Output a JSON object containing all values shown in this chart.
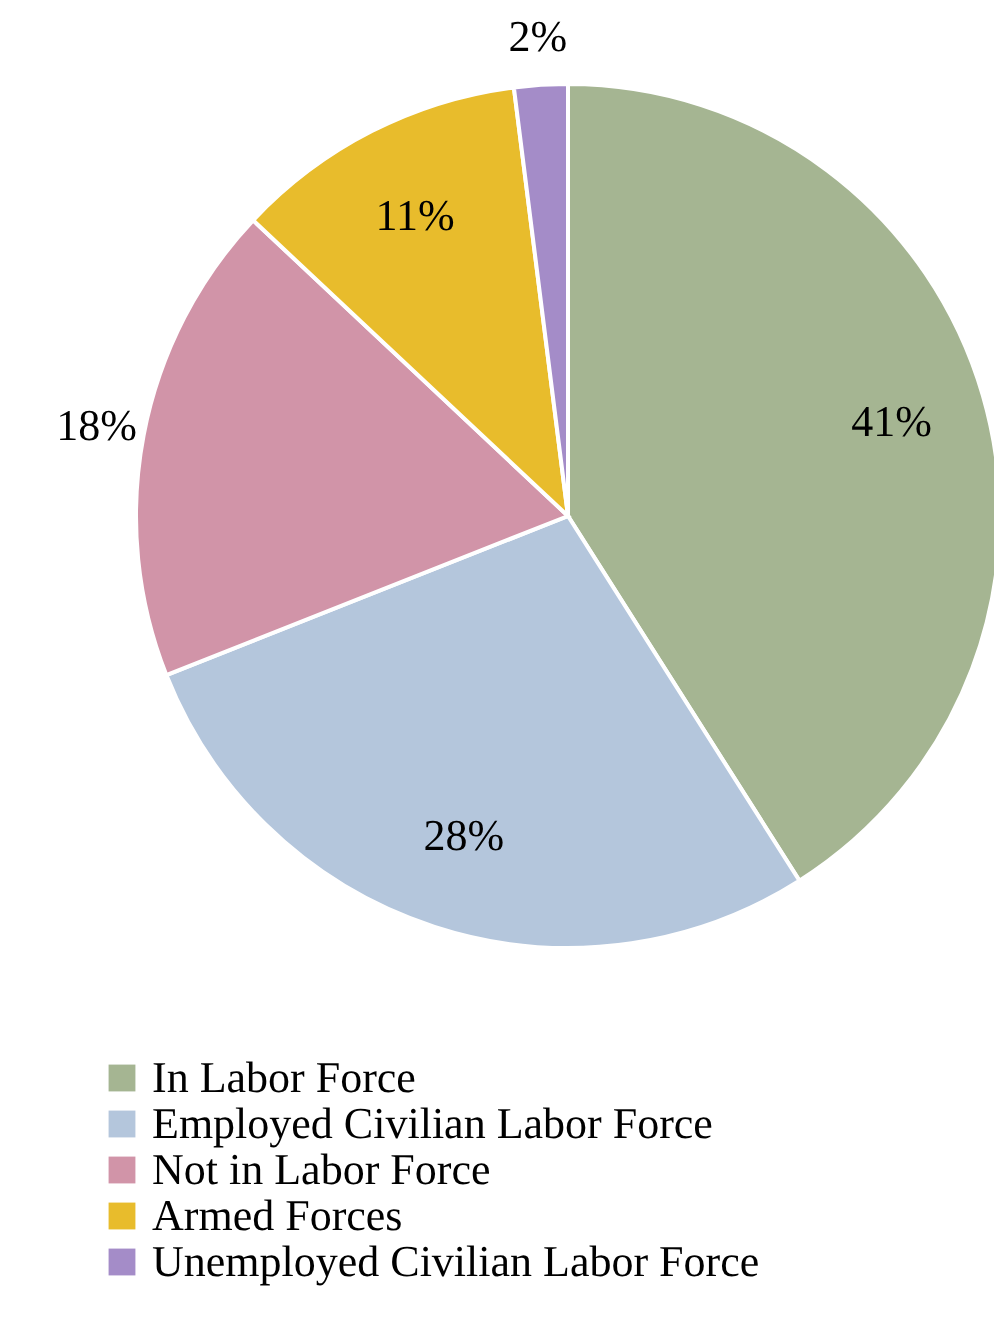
{
  "chart_data": {
    "type": "pie",
    "categories": [
      "In Labor Force",
      "Employed Civilian Labor Force",
      "Not in Labor Force",
      "Armed Forces",
      "Unemployed Civilian Labor Force"
    ],
    "values": [
      41,
      28,
      18,
      11,
      2
    ],
    "colors": [
      "#a5b592",
      "#b4c6dc",
      "#d194a8",
      "#e8bc2c",
      "#a48cc8"
    ],
    "value_labels": [
      "41%",
      "28%",
      "18%",
      "11%",
      "2%"
    ],
    "legend": "bottom"
  }
}
